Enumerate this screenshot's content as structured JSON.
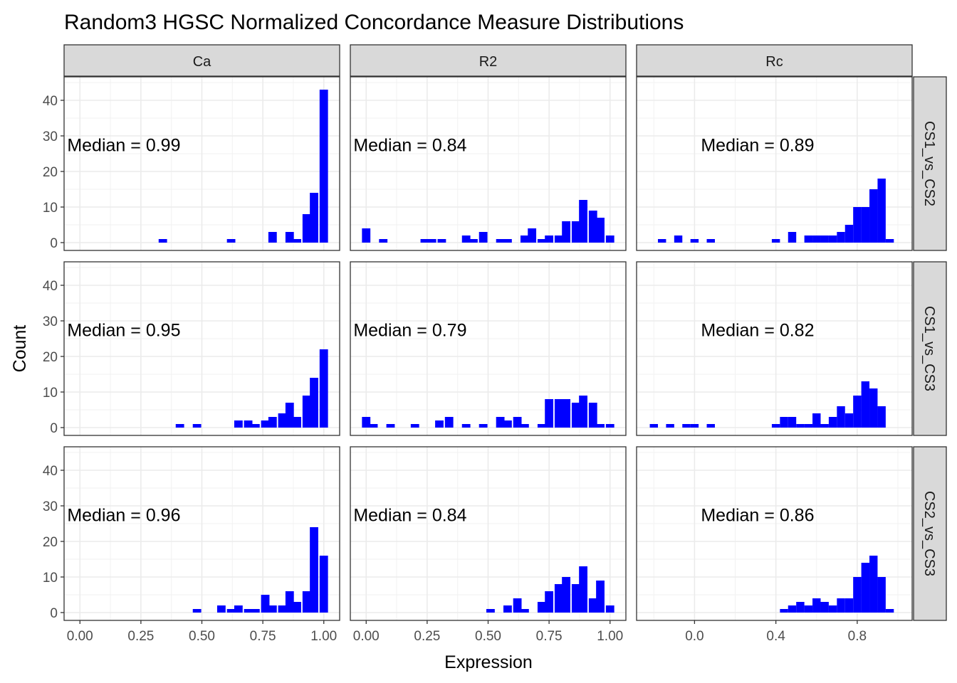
{
  "chart_data": {
    "type": "bar",
    "subtype": "faceted-histogram",
    "title": "Random3 HGSC Normalized Concordance Measure Distributions",
    "xlabel": "Expression",
    "ylabel": "Count",
    "bar_color": "#0000ff",
    "strip_fill": "#d9d9d9",
    "grid": true,
    "ylim": [
      0,
      45
    ],
    "y_ticks": [
      0,
      10,
      20,
      30,
      40
    ],
    "columns": [
      {
        "label": "Ca",
        "xlim": [
          -0.065,
          1.065
        ],
        "ticks": [
          0,
          0.25,
          0.5,
          0.75,
          1.0
        ],
        "tick_labels": [
          "0.00",
          "0.25",
          "0.50",
          "0.75",
          "1.00"
        ]
      },
      {
        "label": "R2",
        "xlim": [
          -0.065,
          1.065
        ],
        "ticks": [
          0,
          0.25,
          0.5,
          0.75,
          1.0
        ],
        "tick_labels": [
          "0.00",
          "0.25",
          "0.50",
          "0.75",
          "1.00"
        ]
      },
      {
        "label": "Rc",
        "xlim": [
          -0.285,
          1.07
        ],
        "ticks": [
          0,
          0.4,
          0.8
        ],
        "tick_labels": [
          "0.0",
          "0.4",
          "0.8"
        ]
      }
    ],
    "rows": [
      "CS1_vs_CS2",
      "CS1_vs_CS3",
      "CS2_vs_CS3"
    ],
    "panels": [
      {
        "row": 0,
        "col": 0,
        "median": "Median = 0.99",
        "bins": [
          [
            0.34,
            1
          ],
          [
            0.62,
            1
          ],
          [
            0.79,
            3
          ],
          [
            0.86,
            3
          ],
          [
            0.89,
            1
          ],
          [
            0.93,
            8
          ],
          [
            0.96,
            14
          ],
          [
            1.0,
            43
          ]
        ]
      },
      {
        "row": 0,
        "col": 1,
        "median": "Median = 0.84",
        "bins": [
          [
            0.0,
            4
          ],
          [
            0.07,
            1
          ],
          [
            0.24,
            1
          ],
          [
            0.27,
            1
          ],
          [
            0.31,
            1
          ],
          [
            0.41,
            2
          ],
          [
            0.44,
            1
          ],
          [
            0.48,
            3
          ],
          [
            0.55,
            1
          ],
          [
            0.58,
            1
          ],
          [
            0.65,
            2
          ],
          [
            0.68,
            4
          ],
          [
            0.72,
            1
          ],
          [
            0.75,
            2
          ],
          [
            0.79,
            2
          ],
          [
            0.82,
            6
          ],
          [
            0.86,
            6
          ],
          [
            0.89,
            12
          ],
          [
            0.93,
            9
          ],
          [
            0.96,
            7
          ],
          [
            1.0,
            2
          ]
        ]
      },
      {
        "row": 0,
        "col": 2,
        "median": "Median = 0.89",
        "bins": [
          [
            -0.16,
            1
          ],
          [
            -0.08,
            2
          ],
          [
            -0.0,
            1
          ],
          [
            0.08,
            1
          ],
          [
            0.4,
            1
          ],
          [
            0.48,
            3
          ],
          [
            0.56,
            2
          ],
          [
            0.6,
            2
          ],
          [
            0.64,
            2
          ],
          [
            0.68,
            2
          ],
          [
            0.72,
            3
          ],
          [
            0.76,
            5
          ],
          [
            0.8,
            10
          ],
          [
            0.84,
            10
          ],
          [
            0.88,
            15
          ],
          [
            0.92,
            18
          ],
          [
            0.96,
            1
          ]
        ]
      },
      {
        "row": 1,
        "col": 0,
        "median": "Median = 0.95",
        "bins": [
          [
            0.41,
            1
          ],
          [
            0.48,
            1
          ],
          [
            0.65,
            2
          ],
          [
            0.69,
            2
          ],
          [
            0.72,
            1
          ],
          [
            0.76,
            2
          ],
          [
            0.79,
            3
          ],
          [
            0.83,
            4
          ],
          [
            0.86,
            7
          ],
          [
            0.89,
            3
          ],
          [
            0.93,
            9
          ],
          [
            0.96,
            14
          ],
          [
            1.0,
            22
          ]
        ]
      },
      {
        "row": 1,
        "col": 1,
        "median": "Median = 0.79",
        "bins": [
          [
            0.0,
            3
          ],
          [
            0.03,
            1
          ],
          [
            0.1,
            1
          ],
          [
            0.2,
            1
          ],
          [
            0.3,
            2
          ],
          [
            0.34,
            3
          ],
          [
            0.41,
            1
          ],
          [
            0.48,
            1
          ],
          [
            0.55,
            3
          ],
          [
            0.58,
            2
          ],
          [
            0.62,
            3
          ],
          [
            0.65,
            1
          ],
          [
            0.72,
            1
          ],
          [
            0.75,
            8
          ],
          [
            0.79,
            8
          ],
          [
            0.82,
            8
          ],
          [
            0.86,
            7
          ],
          [
            0.89,
            9
          ],
          [
            0.93,
            7
          ],
          [
            0.96,
            1
          ],
          [
            1.0,
            1
          ]
        ]
      },
      {
        "row": 1,
        "col": 2,
        "median": "Median = 0.82",
        "bins": [
          [
            -0.2,
            1
          ],
          [
            -0.12,
            1
          ],
          [
            -0.04,
            1
          ],
          [
            0.0,
            1
          ],
          [
            0.08,
            1
          ],
          [
            0.4,
            1
          ],
          [
            0.44,
            3
          ],
          [
            0.48,
            3
          ],
          [
            0.52,
            1
          ],
          [
            0.56,
            1
          ],
          [
            0.6,
            4
          ],
          [
            0.64,
            1
          ],
          [
            0.68,
            3
          ],
          [
            0.72,
            6
          ],
          [
            0.76,
            4
          ],
          [
            0.8,
            9
          ],
          [
            0.84,
            13
          ],
          [
            0.88,
            11
          ],
          [
            0.92,
            6
          ]
        ]
      },
      {
        "row": 2,
        "col": 0,
        "median": "Median = 0.96",
        "bins": [
          [
            0.48,
            1
          ],
          [
            0.58,
            2
          ],
          [
            0.62,
            1
          ],
          [
            0.65,
            2
          ],
          [
            0.69,
            1
          ],
          [
            0.72,
            1
          ],
          [
            0.76,
            5
          ],
          [
            0.79,
            2
          ],
          [
            0.83,
            2
          ],
          [
            0.86,
            6
          ],
          [
            0.89,
            3
          ],
          [
            0.93,
            6
          ],
          [
            0.96,
            24
          ],
          [
            1.0,
            16
          ]
        ]
      },
      {
        "row": 2,
        "col": 1,
        "median": "Median = 0.84",
        "bins": [
          [
            0.51,
            1
          ],
          [
            0.58,
            2
          ],
          [
            0.62,
            4
          ],
          [
            0.65,
            1
          ],
          [
            0.72,
            3
          ],
          [
            0.75,
            6
          ],
          [
            0.79,
            8
          ],
          [
            0.82,
            10
          ],
          [
            0.86,
            8
          ],
          [
            0.89,
            13
          ],
          [
            0.93,
            4
          ],
          [
            0.96,
            9
          ],
          [
            1.0,
            2
          ]
        ]
      },
      {
        "row": 2,
        "col": 2,
        "median": "Median = 0.86",
        "bins": [
          [
            0.44,
            1
          ],
          [
            0.48,
            2
          ],
          [
            0.52,
            3
          ],
          [
            0.56,
            2
          ],
          [
            0.6,
            4
          ],
          [
            0.64,
            3
          ],
          [
            0.68,
            2
          ],
          [
            0.72,
            4
          ],
          [
            0.76,
            4
          ],
          [
            0.8,
            10
          ],
          [
            0.84,
            14
          ],
          [
            0.88,
            16
          ],
          [
            0.92,
            10
          ],
          [
            0.96,
            1
          ]
        ]
      }
    ]
  }
}
